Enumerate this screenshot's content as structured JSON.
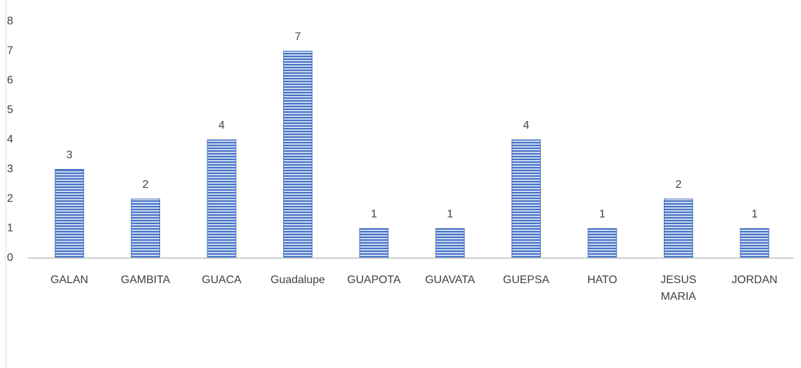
{
  "chart_data": {
    "type": "bar",
    "categories": [
      "GALAN",
      "GAMBITA",
      "GUACA",
      "Guadalupe",
      "GUAPOTA",
      "GUAVATA",
      "GUEPSA",
      "HATO",
      "JESUS MARIA",
      "JORDAN"
    ],
    "values": [
      3,
      2,
      4,
      7,
      1,
      1,
      4,
      1,
      2,
      1
    ],
    "color": "#4472c4",
    "ylim": [
      0,
      8
    ],
    "yticks": [
      0,
      1,
      2,
      3,
      4,
      5,
      6,
      7,
      8
    ],
    "grid": false
  }
}
